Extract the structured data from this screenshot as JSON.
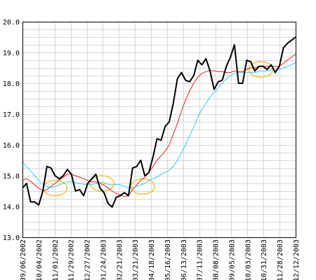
{
  "chart_data": {
    "type": "line",
    "title": "",
    "xlabel": "",
    "ylabel": "",
    "ylim": [
      13.0,
      20.0
    ],
    "yticks": [
      "20.0",
      "19.0",
      "18.0",
      "17.0",
      "16.0",
      "15.0",
      "14.0",
      "13.0"
    ],
    "xticks": [
      "09/06/2002",
      "10/04/2002",
      "11/01/2002",
      "11/29/2002",
      "12/27/2002",
      "01/24/2003",
      "02/21/2003",
      "03/21/2003",
      "04/18/2003",
      "05/16/2003",
      "06/13/2003",
      "07/11/2003",
      "08/08/2003",
      "09/05/2003",
      "10/03/2003",
      "10/31/2003",
      "11/28/2003",
      "12/12/2003"
    ],
    "grid": true,
    "x": [
      0,
      1,
      2,
      3,
      4,
      5,
      6,
      7,
      8,
      9,
      10,
      11,
      12,
      13,
      14,
      15,
      16,
      17,
      18,
      19,
      20,
      21,
      22,
      23,
      24,
      25,
      26,
      27,
      28,
      29,
      30,
      31,
      32,
      33,
      34,
      35,
      36,
      37,
      38,
      39,
      40,
      41,
      42,
      43,
      44,
      45,
      46,
      47,
      48,
      49,
      50,
      51,
      52,
      53,
      54,
      55,
      56,
      57,
      58,
      59,
      60,
      61,
      62,
      63,
      64,
      65,
      66,
      67
    ],
    "series": [
      {
        "color": "#000000",
        "values": [
          14.6,
          14.75,
          14.15,
          14.15,
          14.05,
          14.5,
          15.3,
          15.25,
          15.0,
          14.9,
          15.0,
          15.2,
          15.05,
          14.5,
          14.55,
          14.35,
          14.75,
          14.9,
          15.05,
          14.6,
          14.45,
          14.1,
          13.98,
          14.3,
          14.35,
          14.45,
          14.35,
          15.25,
          15.3,
          15.5,
          15.0,
          15.1,
          15.6,
          16.2,
          16.15,
          16.6,
          16.75,
          17.35,
          18.15,
          18.35,
          18.1,
          18.05,
          18.25,
          18.75,
          18.6,
          18.8,
          18.4,
          17.8,
          18.05,
          18.1,
          18.55,
          18.85,
          19.25,
          18.0,
          18.0,
          18.75,
          18.7,
          18.4,
          18.55,
          18.55,
          18.45,
          18.6,
          18.35,
          18.55,
          19.15,
          19.3,
          19.4,
          19.5
        ],
        "line_width": 2
      },
      {
        "color": "#e02020",
        "values": [
          14.85,
          14.9,
          14.82,
          14.7,
          14.6,
          14.5,
          14.55,
          14.65,
          14.75,
          14.85,
          14.95,
          15.05,
          15.05,
          15.0,
          14.95,
          14.9,
          14.85,
          14.8,
          14.8,
          14.75,
          14.7,
          14.6,
          14.5,
          14.42,
          14.38,
          14.32,
          14.35,
          14.55,
          14.7,
          14.85,
          14.95,
          15.1,
          15.3,
          15.5,
          15.65,
          15.8,
          16.0,
          16.35,
          16.7,
          17.1,
          17.45,
          17.75,
          18.0,
          18.2,
          18.32,
          18.38,
          18.42,
          18.4,
          18.38,
          18.38,
          18.35,
          18.35,
          18.4,
          18.38,
          18.38,
          18.45,
          18.5,
          18.5,
          18.55,
          18.55,
          18.55,
          18.55,
          18.55,
          18.55,
          18.65,
          18.75,
          18.85,
          18.95
        ],
        "line_width": 1
      },
      {
        "color": "#33ccee",
        "values": [
          15.45,
          15.3,
          15.15,
          15.0,
          14.85,
          14.72,
          14.65,
          14.62,
          14.65,
          14.7,
          14.75,
          14.8,
          14.8,
          14.78,
          14.75,
          14.72,
          14.72,
          14.72,
          14.75,
          14.78,
          14.78,
          14.72,
          14.7,
          14.72,
          14.7,
          14.65,
          14.62,
          14.62,
          14.65,
          14.7,
          14.75,
          14.85,
          14.9,
          14.95,
          15.05,
          15.1,
          15.18,
          15.3,
          15.5,
          15.75,
          16.0,
          16.3,
          16.6,
          16.9,
          17.15,
          17.35,
          17.55,
          17.7,
          17.85,
          18.0,
          18.15,
          18.25,
          18.32,
          18.35,
          18.35,
          18.35,
          18.35,
          18.35,
          18.38,
          18.4,
          18.4,
          18.45,
          18.45,
          18.45,
          18.5,
          18.55,
          18.6,
          18.68
        ],
        "line_width": 1
      }
    ],
    "annotations": [
      {
        "type": "ellipse",
        "x": 8,
        "y": 14.6,
        "color": "#f2c233"
      },
      {
        "type": "ellipse",
        "x": 19.5,
        "y": 14.75,
        "color": "#f2c233"
      },
      {
        "type": "ellipse",
        "x": 29.5,
        "y": 14.65,
        "color": "#f2c233"
      },
      {
        "type": "ellipse",
        "x": 58.5,
        "y": 18.45,
        "color": "#f2c233"
      }
    ]
  }
}
